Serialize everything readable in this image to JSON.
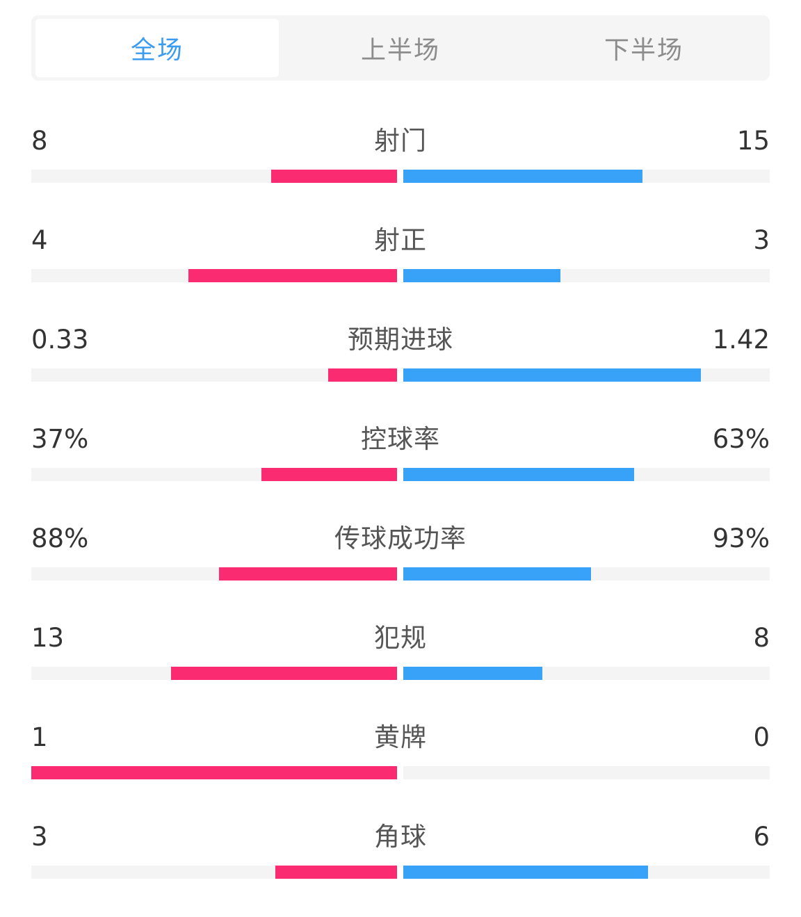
{
  "tabs": [
    {
      "label": "全场",
      "active": true
    },
    {
      "label": "上半场",
      "active": false
    },
    {
      "label": "下半场",
      "active": false
    }
  ],
  "colors": {
    "home": "#fb2b72",
    "away": "#38a1f8",
    "active_tab": "#3a9bf0"
  },
  "stats": [
    {
      "label": "射门",
      "home": "8",
      "away": "15",
      "home_fill": 0.345,
      "away_fill": 0.652
    },
    {
      "label": "射正",
      "home": "4",
      "away": "3",
      "home_fill": 0.57,
      "away_fill": 0.428
    },
    {
      "label": "预期进球",
      "home": "0.33",
      "away": "1.42",
      "home_fill": 0.189,
      "away_fill": 0.812
    },
    {
      "label": "控球率",
      "home": "37%",
      "away": "63%",
      "home_fill": 0.37,
      "away_fill": 0.63
    },
    {
      "label": "传球成功率",
      "home": "88%",
      "away": "93%",
      "home_fill": 0.487,
      "away_fill": 0.513
    },
    {
      "label": "犯规",
      "home": "13",
      "away": "8",
      "home_fill": 0.618,
      "away_fill": 0.38
    },
    {
      "label": "黄牌",
      "home": "1",
      "away": "0",
      "home_fill": 1.0,
      "away_fill": 0.0
    },
    {
      "label": "角球",
      "home": "3",
      "away": "6",
      "home_fill": 0.333,
      "away_fill": 0.667
    }
  ]
}
